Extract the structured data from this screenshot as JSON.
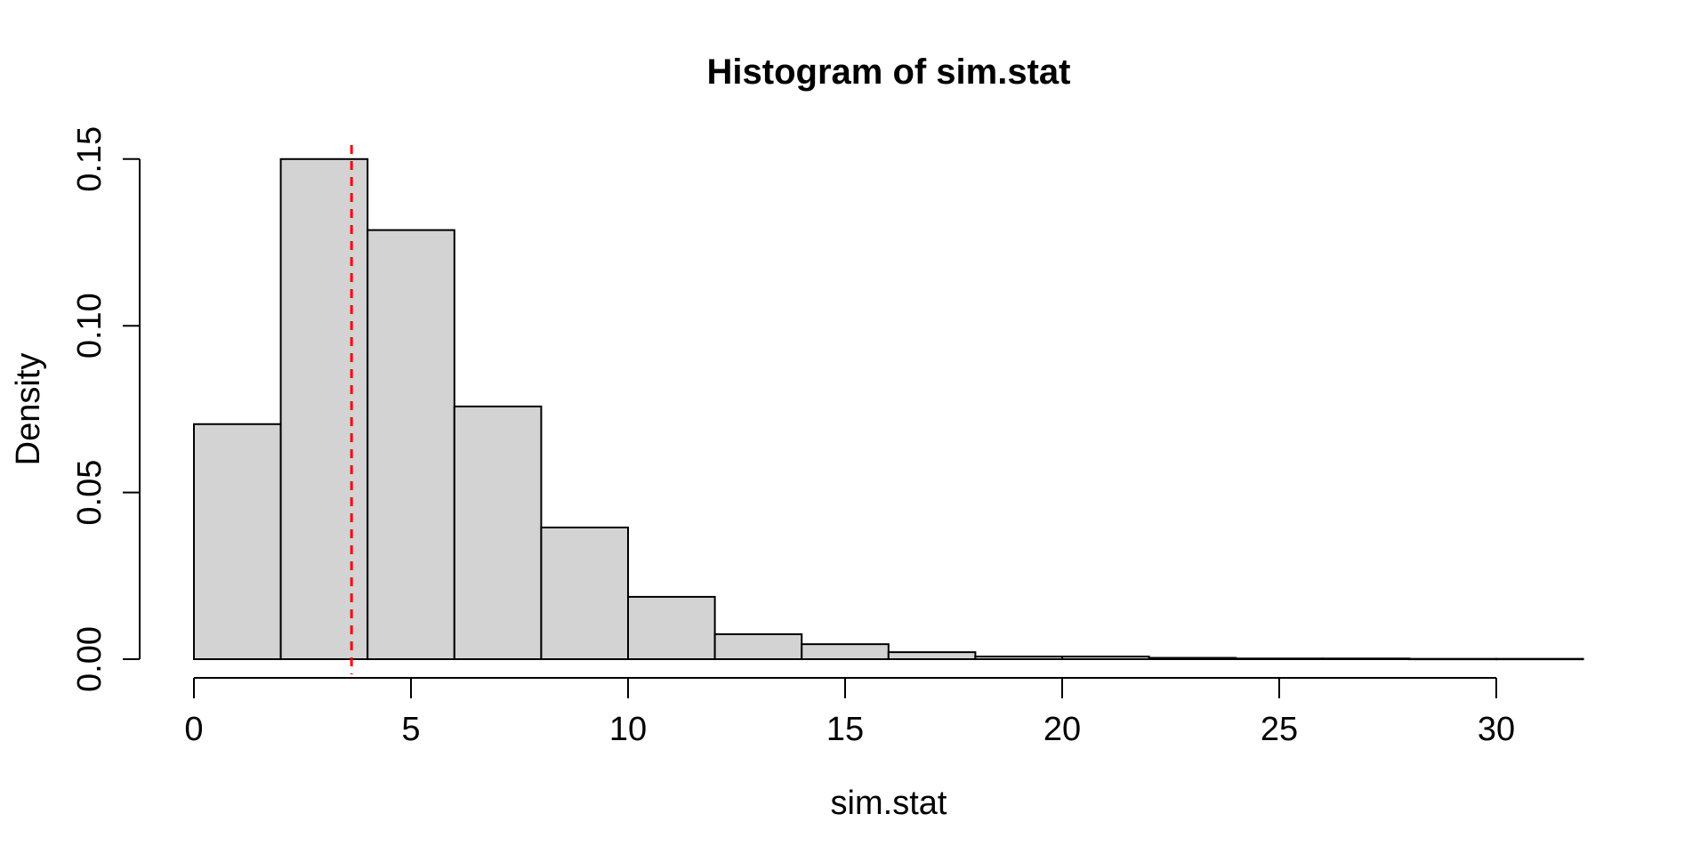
{
  "figure": {
    "background": "#ffffff"
  },
  "chart_data": {
    "type": "bar",
    "subtype": "histogram",
    "title": "Histogram of sim.stat",
    "xlabel": "sim.stat",
    "ylabel": "Density",
    "bin_width": 2,
    "bin_edges": [
      0,
      2,
      4,
      6,
      8,
      10,
      12,
      14,
      16,
      18,
      20,
      22,
      24,
      26,
      28,
      30,
      32
    ],
    "densities": [
      0.0705,
      0.15,
      0.1287,
      0.0758,
      0.0395,
      0.0187,
      0.0075,
      0.0045,
      0.0021,
      0.0008,
      0.0008,
      0.0004,
      0.0002,
      0.0002,
      0.0001,
      0.0001
    ],
    "x_ticks": [
      0,
      5,
      10,
      15,
      20,
      25,
      30
    ],
    "x_tick_labels": [
      "0",
      "5",
      "10",
      "15",
      "20",
      "25",
      "30"
    ],
    "y_ticks": [
      0.0,
      0.05,
      0.1,
      0.15
    ],
    "y_tick_labels": [
      "0.00",
      "0.05",
      "0.10",
      "0.15"
    ],
    "xlim": [
      0,
      32
    ],
    "ylim": [
      0,
      0.15
    ],
    "grid": false,
    "legend": null,
    "bar_fill": "#d3d3d3",
    "bar_stroke": "#000000",
    "axis_color": "#000000",
    "vline": {
      "x": 3.63,
      "color": "#ff0000",
      "style": "dashed"
    }
  }
}
